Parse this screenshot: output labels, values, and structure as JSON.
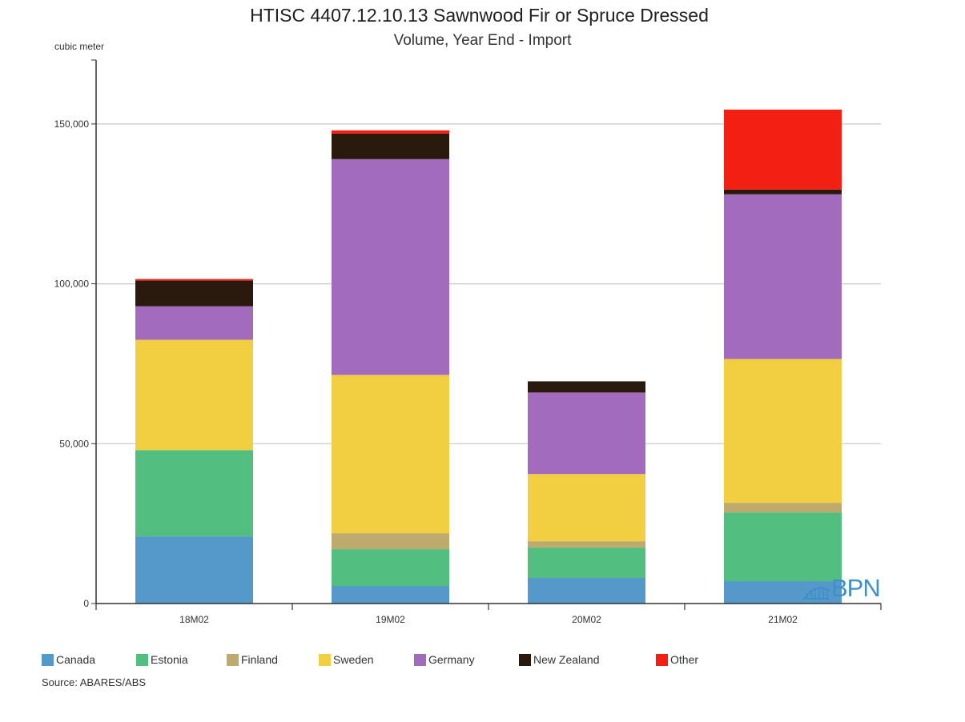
{
  "chart_data": {
    "type": "bar",
    "stacked": true,
    "title": "HTISC 4407.12.10.13 Sawnwood Fir or Spruce Dressed",
    "subtitle": "Volume, Year End - Import",
    "ylabel": "cubic meter",
    "xlabel": "",
    "ylim": [
      0,
      170000
    ],
    "yticks": [
      0,
      50000,
      100000,
      150000
    ],
    "ytick_labels": [
      "0",
      "50,000",
      "100,000",
      "150,000"
    ],
    "grid": true,
    "legend_position": "bottom",
    "categories": [
      "18M02",
      "19M02",
      "20M02",
      "21M02"
    ],
    "series": [
      {
        "name": "Canada",
        "color": "#5499c9",
        "values": [
          21000,
          5500,
          8000,
          7000
        ]
      },
      {
        "name": "Estonia",
        "color": "#52bf80",
        "values": [
          27000,
          11500,
          9500,
          21500
        ]
      },
      {
        "name": "Finland",
        "color": "#bfaa6e",
        "values": [
          0,
          5000,
          2000,
          3000
        ]
      },
      {
        "name": "Sweden",
        "color": "#f2cf41",
        "values": [
          34500,
          49500,
          21000,
          45000
        ]
      },
      {
        "name": "Germany",
        "color": "#a26bbd",
        "values": [
          10500,
          67500,
          25500,
          51500
        ]
      },
      {
        "name": "New Zealand",
        "color": "#2a1a0e",
        "values": [
          8000,
          8000,
          3500,
          1500
        ]
      },
      {
        "name": "Other",
        "color": "#f41f13",
        "values": [
          500,
          1000,
          0,
          25000
        ]
      }
    ]
  },
  "source": "Source: ABARES/ABS",
  "logo_text": "BPN"
}
